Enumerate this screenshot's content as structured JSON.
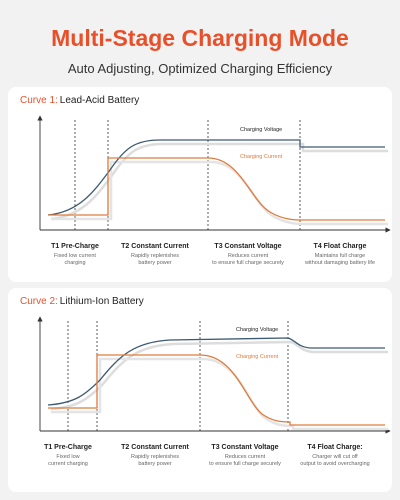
{
  "header": {
    "title": "Multi-Stage Charging Mode",
    "subtitle": "Auto Adjusting, Optimized Charging Efficiency"
  },
  "panels": [
    {
      "curve_label": "Curve 1:",
      "battery": "Lead-Acid Battery",
      "voltage_label": "Charging Voltage",
      "current_label": "Charging Current",
      "stages": [
        {
          "title": "T1 Pre-Charge",
          "description": [
            "Fixed low current",
            "charging"
          ]
        },
        {
          "title": "T2 Constant Current",
          "description": [
            "Rapidly replenishes",
            "battery power"
          ]
        },
        {
          "title": "T3 Constant Voltage",
          "description": [
            "Reduces current",
            "to ensure full charge securely"
          ]
        },
        {
          "title": "T4 Float Charge",
          "description": [
            "Maintains full charge",
            "without damaging battery life"
          ]
        }
      ]
    },
    {
      "curve_label": "Curve 2:",
      "battery": "Lithium-Ion Battery",
      "voltage_label": "Charging Voltage",
      "current_label": "Charging Current",
      "stages": [
        {
          "title": "T1 Pre-Charge",
          "description": [
            "Fixed low",
            "current charging"
          ]
        },
        {
          "title": "T2 Constant Current",
          "description": [
            "Rapidly replenishes",
            "battery power"
          ]
        },
        {
          "title": "T3 Constant Voltage",
          "description": [
            "Reduces current",
            "to ensure full charge securely"
          ]
        },
        {
          "title": "T4 Float Charge:",
          "description": [
            "Charger will cut off",
            "output to avoid overcharging"
          ]
        }
      ]
    }
  ]
}
